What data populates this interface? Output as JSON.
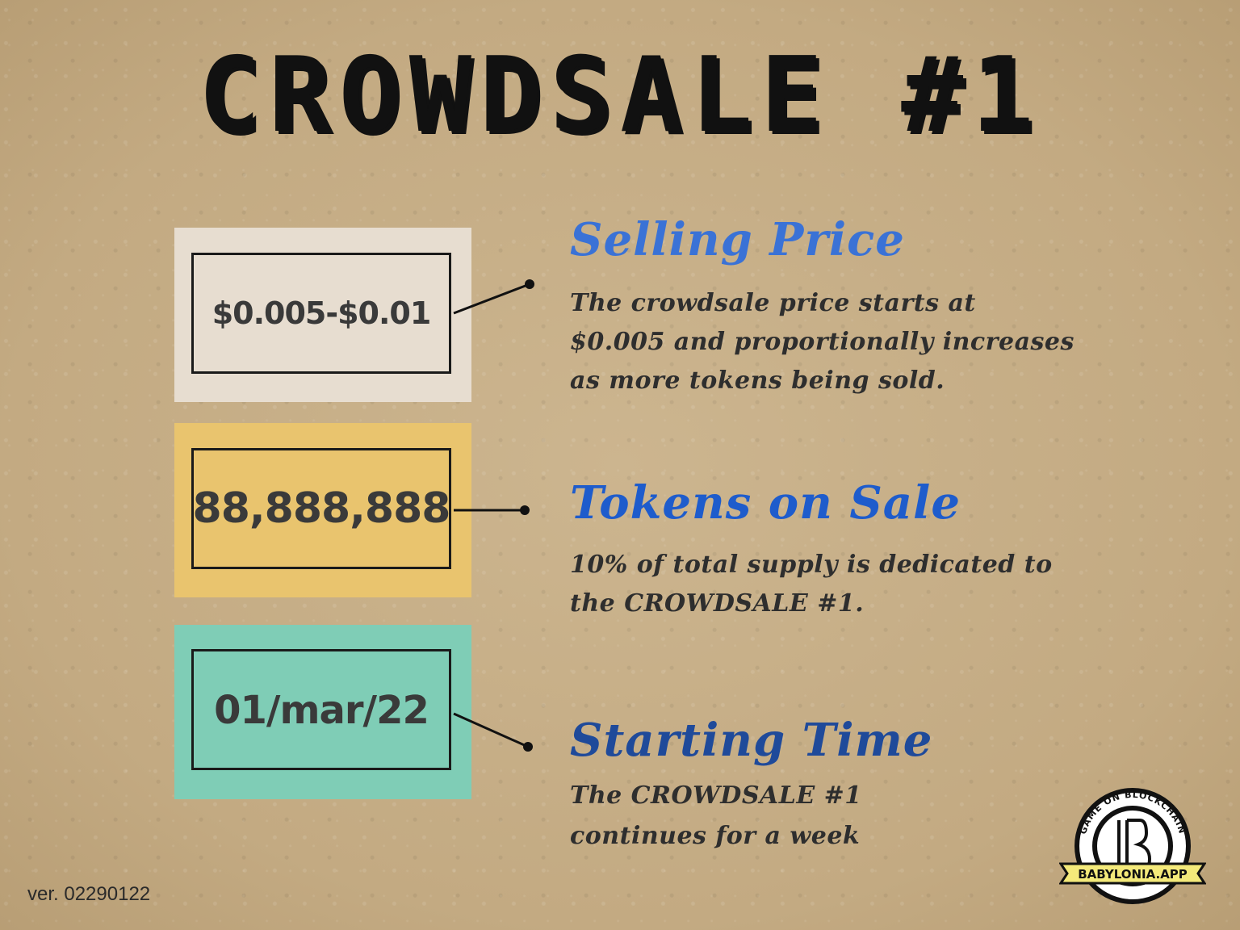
{
  "title": "CROWDSALE #1",
  "cards": [
    {
      "value": "$0.005-$0.01",
      "color": "#e7ddd0"
    },
    {
      "value": "88,888,888",
      "color": "#e9c46e"
    },
    {
      "value": "01/mar/22",
      "color": "#7fcdb6"
    }
  ],
  "sections": [
    {
      "heading": "Selling Price",
      "color": "#3a72d6",
      "lines": [
        "The crowdsale price starts at",
        "$0.005 and proportionally increases",
        "as more tokens being sold."
      ]
    },
    {
      "heading": "Tokens on Sale",
      "color": "#1e5ccc",
      "lines": [
        "10% of total supply is dedicated to",
        "the CROWDSALE #1."
      ]
    },
    {
      "heading": "Starting Time",
      "color": "#1f4a9a",
      "lines": [
        "The CROWDSALE #1",
        "continues for a week"
      ]
    }
  ],
  "version": "ver. 02290122",
  "logo": {
    "arc_text": "GAME ON BLOCKCHAIN",
    "banner_text": "BABYLONIA.APP"
  }
}
